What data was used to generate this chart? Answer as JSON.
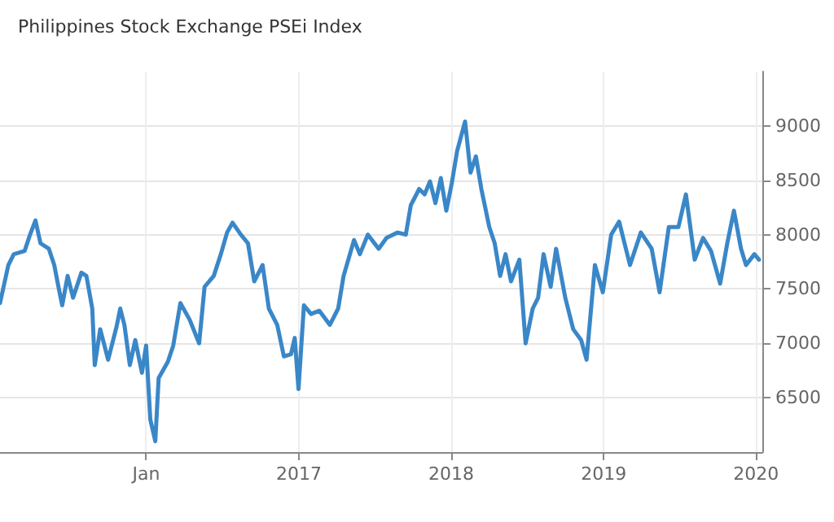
{
  "chart_data": {
    "type": "line",
    "title": "Philippines Stock Exchange PSEi Index",
    "x": [
      "2015-01-16",
      "2015-02-05",
      "2015-02-18",
      "2015-03-16",
      "2015-03-29",
      "2015-04-11",
      "2015-04-23",
      "2015-05-13",
      "2015-05-26",
      "2015-06-05",
      "2015-06-14",
      "2015-06-27",
      "2015-07-10",
      "2015-07-30",
      "2015-08-11",
      "2015-08-25",
      "2015-08-31",
      "2015-09-13",
      "2015-10-02",
      "2015-10-22",
      "2015-10-31",
      "2015-11-10",
      "2015-11-23",
      "2015-12-06",
      "2015-12-22",
      "2016-01-01",
      "2016-01-11",
      "2016-01-23",
      "2016-01-31",
      "2016-02-22",
      "2016-03-06",
      "2016-03-23",
      "2016-04-14",
      "2016-05-07",
      "2016-05-20",
      "2016-06-11",
      "2016-06-28",
      "2016-07-13",
      "2016-07-26",
      "2016-08-15",
      "2016-09-01",
      "2016-09-16",
      "2016-10-06",
      "2016-10-21",
      "2016-11-10",
      "2016-11-26",
      "2016-12-13",
      "2016-12-22",
      "2016-12-31",
      "2017-01-13",
      "2017-01-30",
      "2017-02-19",
      "2017-03-16",
      "2017-04-05",
      "2017-04-18",
      "2017-05-13",
      "2017-05-27",
      "2017-06-15",
      "2017-07-11",
      "2017-07-30",
      "2017-08-25",
      "2017-09-14",
      "2017-09-26",
      "2017-10-16",
      "2017-10-29",
      "2017-11-11",
      "2017-11-24",
      "2017-12-07",
      "2017-12-20",
      "2018-01-02",
      "2018-01-15",
      "2018-02-03",
      "2018-02-16",
      "2018-03-01",
      "2018-03-14",
      "2018-04-02",
      "2018-04-15",
      "2018-04-28",
      "2018-05-11",
      "2018-05-24",
      "2018-06-13",
      "2018-06-28",
      "2018-07-15",
      "2018-07-28",
      "2018-08-10",
      "2018-08-27",
      "2018-09-09",
      "2018-10-01",
      "2018-10-20",
      "2018-11-08",
      "2018-11-21",
      "2018-12-11",
      "2018-12-30",
      "2019-01-19",
      "2019-02-07",
      "2019-03-05",
      "2019-03-31",
      "2019-04-26",
      "2019-05-15",
      "2019-06-06",
      "2019-06-29",
      "2019-07-17",
      "2019-08-07",
      "2019-08-27",
      "2019-09-15",
      "2019-10-07",
      "2019-10-24",
      "2019-11-09",
      "2019-11-26",
      "2019-12-08",
      "2019-12-28",
      "2020-01-08"
    ],
    "series": [
      {
        "color": "#3a87c8",
        "values": [
          7370,
          7720,
          7820,
          7850,
          8000,
          8130,
          7920,
          7870,
          7720,
          7520,
          7350,
          7620,
          7420,
          7650,
          7620,
          7320,
          6800,
          7130,
          6850,
          7150,
          7320,
          7170,
          6800,
          7030,
          6730,
          6980,
          6300,
          6100,
          6680,
          6830,
          6980,
          7370,
          7220,
          7000,
          7520,
          7620,
          7820,
          8020,
          8110,
          8000,
          7920,
          7570,
          7720,
          7320,
          7170,
          6880,
          6900,
          7050,
          6580,
          7350,
          7270,
          7300,
          7170,
          7320,
          7620,
          7950,
          7820,
          8000,
          7870,
          7970,
          8020,
          8000,
          8270,
          8420,
          8370,
          8490,
          8290,
          8520,
          8220,
          8470,
          8770,
          9040,
          8570,
          8720,
          8420,
          8070,
          7920,
          7620,
          7820,
          7570,
          7770,
          7000,
          7320,
          7420,
          7820,
          7520,
          7870,
          7420,
          7130,
          7030,
          6850,
          7720,
          7470,
          8000,
          8120,
          7720,
          8020,
          7870,
          7470,
          8070,
          8070,
          8370,
          7770,
          7970,
          7850,
          7550,
          7920,
          8220,
          7870,
          7720,
          7820,
          7770
        ]
      }
    ],
    "xlim": [
      "2015-01-16",
      "2020-01-16"
    ],
    "xticks": [
      {
        "value": "2016-01-01",
        "label": "Jan"
      },
      {
        "value": "2017-01-01",
        "label": "2017"
      },
      {
        "value": "2018-01-01",
        "label": "2018"
      },
      {
        "value": "2019-01-01",
        "label": "2019"
      },
      {
        "value": "2020-01-01",
        "label": "2020"
      }
    ],
    "ylim": [
      6000,
      9500
    ],
    "yticks": [
      6500,
      7000,
      7500,
      8000,
      8500,
      9000
    ],
    "grid": true,
    "marker": "none",
    "line_style": "solid"
  }
}
